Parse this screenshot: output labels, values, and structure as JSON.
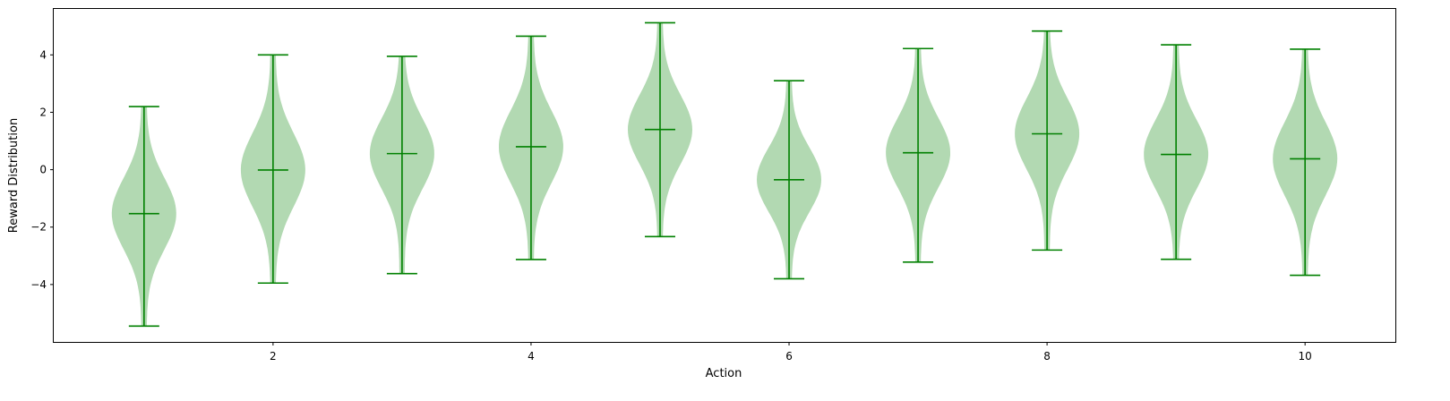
{
  "chart_data": {
    "type": "violin",
    "xlabel": "Action",
    "ylabel": "Reward Distribution",
    "xlim": [
      0.3,
      10.7
    ],
    "ylim": [
      -6.0,
      5.6
    ],
    "xticks": [
      2,
      4,
      6,
      8,
      10
    ],
    "yticks": [
      4,
      2,
      0,
      -2,
      -4
    ],
    "xtick_labels": [
      "2",
      "4",
      "6",
      "8",
      "10"
    ],
    "ytick_labels": [
      "4",
      "2",
      "0",
      "−2",
      "−4"
    ],
    "grid": false,
    "colors": {
      "body": "#008000",
      "body_alpha": 0.3,
      "lines": "#008000"
    },
    "series": [
      {
        "x": 1,
        "min": -5.45,
        "max": 2.2,
        "mean": -1.53
      },
      {
        "x": 2,
        "min": -3.95,
        "max": 4.0,
        "mean": -0.01
      },
      {
        "x": 3,
        "min": -3.62,
        "max": 3.95,
        "mean": 0.56
      },
      {
        "x": 4,
        "min": -3.13,
        "max": 4.65,
        "mean": 0.8
      },
      {
        "x": 5,
        "min": -2.33,
        "max": 5.12,
        "mean": 1.4
      },
      {
        "x": 6,
        "min": -3.8,
        "max": 3.1,
        "mean": -0.35
      },
      {
        "x": 7,
        "min": -3.22,
        "max": 4.22,
        "mean": 0.59
      },
      {
        "x": 8,
        "min": -2.8,
        "max": 4.83,
        "mean": 1.25
      },
      {
        "x": 9,
        "min": -3.12,
        "max": 4.35,
        "mean": 0.53
      },
      {
        "x": 10,
        "min": -3.68,
        "max": 4.2,
        "mean": 0.38
      }
    ]
  }
}
